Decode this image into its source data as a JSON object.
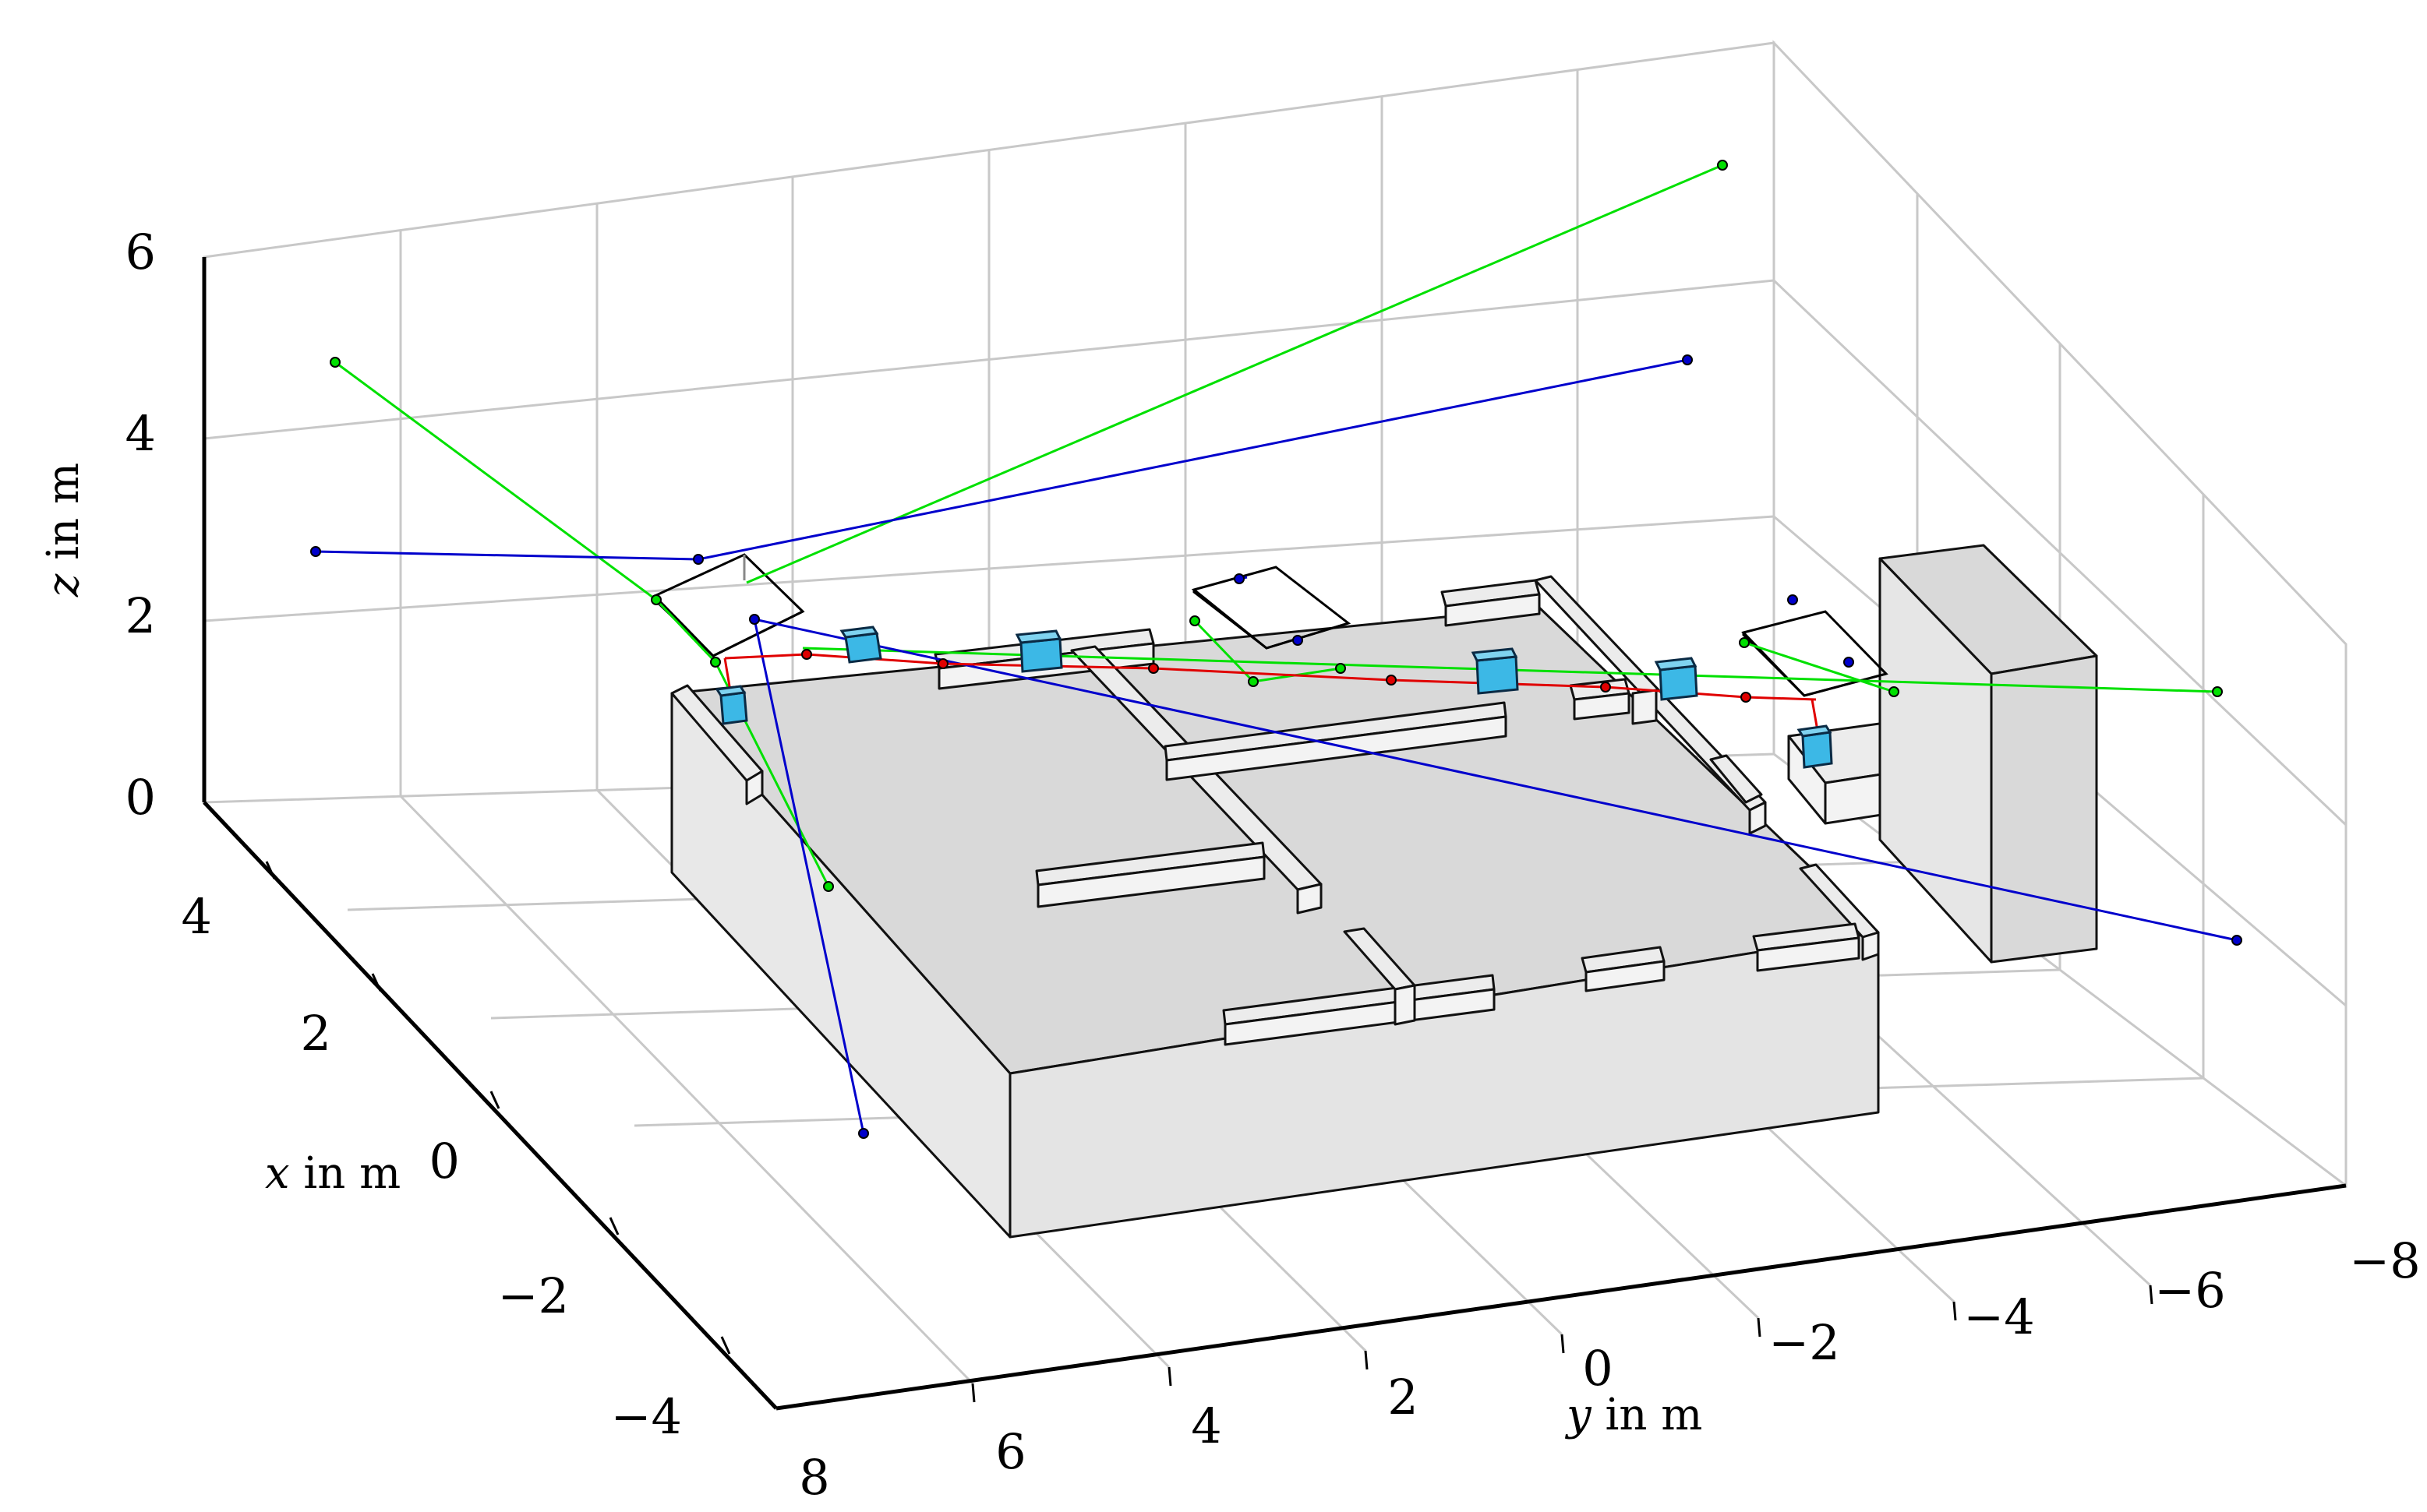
{
  "chart_data": {
    "type": "scatter",
    "projection": "3d",
    "axes": {
      "x": {
        "label_var": "x",
        "label_unit": " in m",
        "ticks": [
          "4",
          "2",
          "0",
          "−2",
          "−4"
        ]
      },
      "y": {
        "label_var": "y",
        "label_unit": " in m",
        "ticks": [
          "8",
          "6",
          "4",
          "2",
          "0",
          "−2",
          "−4",
          "−6",
          "−8"
        ]
      },
      "z": {
        "label_var": "z",
        "label_unit": " in m",
        "ticks": [
          "0",
          "2",
          "4",
          "6"
        ]
      }
    },
    "grid": true,
    "colors": {
      "grid": "#c8c8c8",
      "structure_fill": "#d9d9d9",
      "red_path": "#e00000",
      "green_rays": "#00e000",
      "blue_rays": "#0000cc",
      "cube_fill": "#3cb8e6"
    },
    "series": [
      {
        "color": "#e00000",
        "kind": "path with markers"
      },
      {
        "color": "#00e000",
        "kind": "rays"
      },
      {
        "color": "#0000cc",
        "kind": "rays"
      }
    ]
  }
}
